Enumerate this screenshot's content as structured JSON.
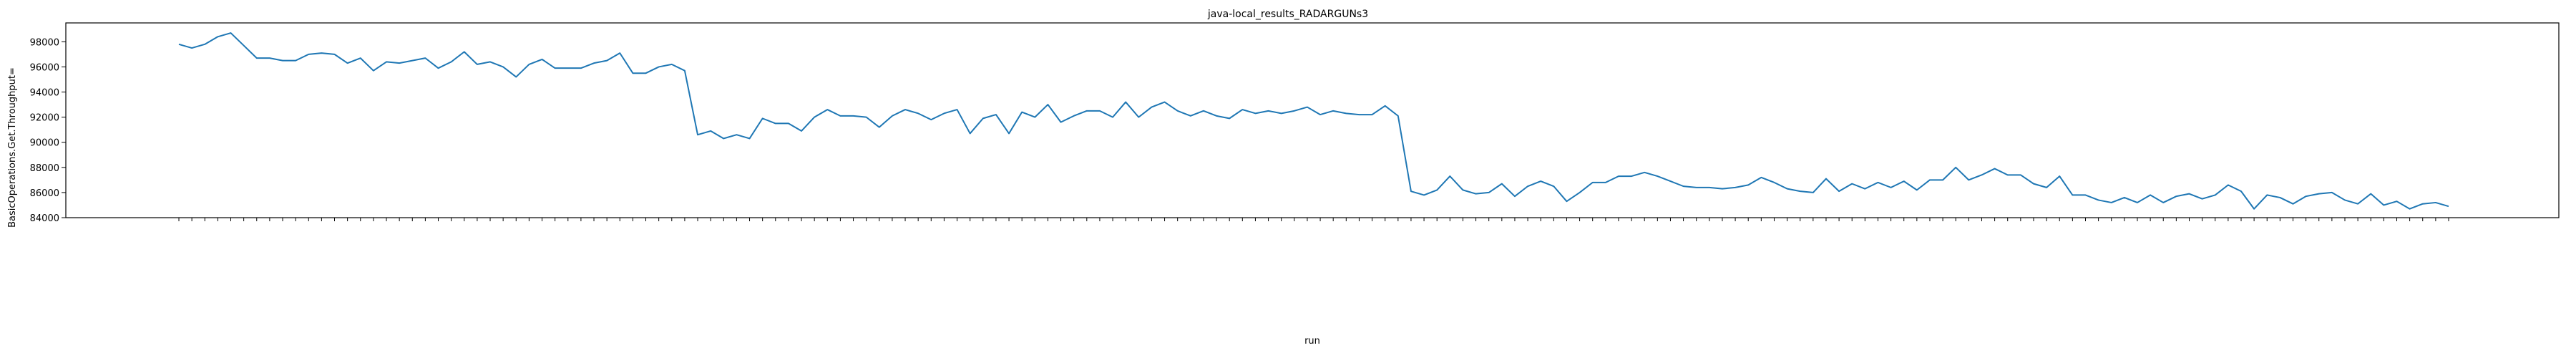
{
  "chart_data": {
    "type": "line",
    "title": "java-local_results_RADARGUNs3",
    "xlabel": "run",
    "ylabel": "BasicOperations.Get.Throughput=",
    "ylim": [
      84000,
      99500
    ],
    "yticks": [
      84000,
      86000,
      88000,
      90000,
      92000,
      94000,
      96000,
      98000
    ],
    "ytick_labels": [
      "84000",
      "86000",
      "88000",
      "90000",
      "92000",
      "94000",
      "96000",
      "98000"
    ],
    "grid": false,
    "legend": "none",
    "series": [
      {
        "values": [
          97800,
          97500,
          97800,
          98400,
          98700,
          97700,
          96700,
          96700,
          96500,
          96500,
          97000,
          97100,
          97000,
          96300,
          96700,
          95700,
          96400,
          96300,
          96500,
          96700,
          95900,
          96400,
          97200,
          96200,
          96400,
          96000,
          95200,
          96200,
          96600,
          95900,
          95900,
          95900,
          96300,
          96500,
          97100,
          95500,
          95500,
          96000,
          96200,
          95700,
          90600,
          90900,
          90300,
          90600,
          90300,
          91900,
          91500,
          91500,
          90900,
          92000,
          92600,
          92100,
          92100,
          92000,
          91200,
          92100,
          92600,
          92300,
          91800,
          92300,
          92600,
          90700,
          91900,
          92200,
          90700,
          92400,
          92000,
          93000,
          91600,
          92100,
          92500,
          92500,
          92000,
          93200,
          92000,
          92800,
          93200,
          92500,
          92100,
          92500,
          92100,
          91900,
          92600,
          92300,
          92500,
          92300,
          92500,
          92800,
          92200,
          92500,
          92300,
          92200,
          92200,
          92900,
          92100,
          86100,
          85800,
          86200,
          87300,
          86200,
          85900,
          86000,
          86700,
          85700,
          86500,
          86900,
          86500,
          85300,
          86000,
          86800,
          86800,
          87300,
          87300,
          87600,
          87300,
          86900,
          86500,
          86400,
          86400,
          86300,
          86400,
          86600,
          87200,
          86800,
          86300,
          86100,
          86000,
          87100,
          86100,
          86700,
          86300,
          86800,
          86400,
          86900,
          86200,
          87000,
          87000,
          88000,
          87000,
          87400,
          87900,
          87400,
          87400,
          86700,
          86400,
          87300,
          85800,
          85800,
          85400,
          85200,
          85600,
          85200,
          85800,
          85200,
          85700,
          85900,
          85500,
          85800,
          86600,
          86100,
          84700,
          85800,
          85600,
          85100,
          85700,
          85900,
          86000,
          85400,
          85100,
          85900,
          85000,
          85300,
          84700,
          85100,
          85200,
          84900
        ]
      }
    ]
  }
}
